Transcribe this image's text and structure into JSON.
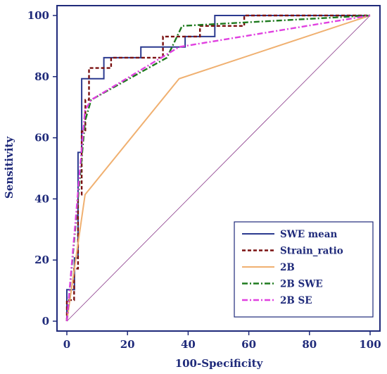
{
  "chart_data": {
    "type": "line",
    "xlabel": "100-Specificity",
    "ylabel": "Sensitivity",
    "xlim": [
      0,
      100
    ],
    "ylim": [
      0,
      100
    ],
    "x_ticks": [
      "0",
      "20",
      "40",
      "60",
      "80",
      "100"
    ],
    "y_ticks": [
      "0",
      "20",
      "40",
      "60",
      "80",
      "100"
    ],
    "grid": false,
    "legend_position": "bottom-right",
    "frame_color": "#1f2a7a",
    "diagonal_color": "#8a3a8a",
    "series": [
      {
        "name": "SWE mean",
        "color": "#2b3a8f",
        "style": "solid",
        "points": [
          [
            0,
            0
          ],
          [
            0,
            10.3
          ],
          [
            2.5,
            10.3
          ],
          [
            2.5,
            20.7
          ],
          [
            3.7,
            20.7
          ],
          [
            3.7,
            55.2
          ],
          [
            4.9,
            55.2
          ],
          [
            4.9,
            79.3
          ],
          [
            12.2,
            79.3
          ],
          [
            12.2,
            86.2
          ],
          [
            24.4,
            86.2
          ],
          [
            24.4,
            89.7
          ],
          [
            39,
            89.7
          ],
          [
            39,
            93.1
          ],
          [
            48.8,
            93.1
          ],
          [
            48.8,
            100
          ],
          [
            100,
            100
          ]
        ]
      },
      {
        "name": "Strain_ratio",
        "color": "#7a1010",
        "style": "dashed",
        "points": [
          [
            0,
            0
          ],
          [
            0,
            6.9
          ],
          [
            2.4,
            6.9
          ],
          [
            2.4,
            17.2
          ],
          [
            3.7,
            17.2
          ],
          [
            3.7,
            41.4
          ],
          [
            4.9,
            41.4
          ],
          [
            4.9,
            62.1
          ],
          [
            6.1,
            62.1
          ],
          [
            6.1,
            72.4
          ],
          [
            7.3,
            72.4
          ],
          [
            7.3,
            82.8
          ],
          [
            14.6,
            82.8
          ],
          [
            14.6,
            86.2
          ],
          [
            31.7,
            86.2
          ],
          [
            31.7,
            93.1
          ],
          [
            43.9,
            93.1
          ],
          [
            43.9,
            96.6
          ],
          [
            58.5,
            96.6
          ],
          [
            58.5,
            100
          ],
          [
            100,
            100
          ]
        ]
      },
      {
        "name": "2B",
        "color": "#f0b070",
        "style": "solid",
        "points": [
          [
            0,
            0
          ],
          [
            6,
            41.4
          ],
          [
            37,
            79.3
          ],
          [
            100,
            100
          ]
        ]
      },
      {
        "name": "2B SWE",
        "color": "#1e7a1e",
        "style": "dashdot",
        "points": [
          [
            0,
            0
          ],
          [
            6,
            65.5
          ],
          [
            8,
            72.4
          ],
          [
            33,
            86.2
          ],
          [
            38,
            96.6
          ],
          [
            100,
            100
          ]
        ]
      },
      {
        "name": "2B SE",
        "color": "#e040e0",
        "style": "dashdot",
        "points": [
          [
            0,
            0
          ],
          [
            6,
            69
          ],
          [
            8,
            72.4
          ],
          [
            37,
            89.7
          ],
          [
            100,
            100
          ]
        ]
      }
    ]
  }
}
